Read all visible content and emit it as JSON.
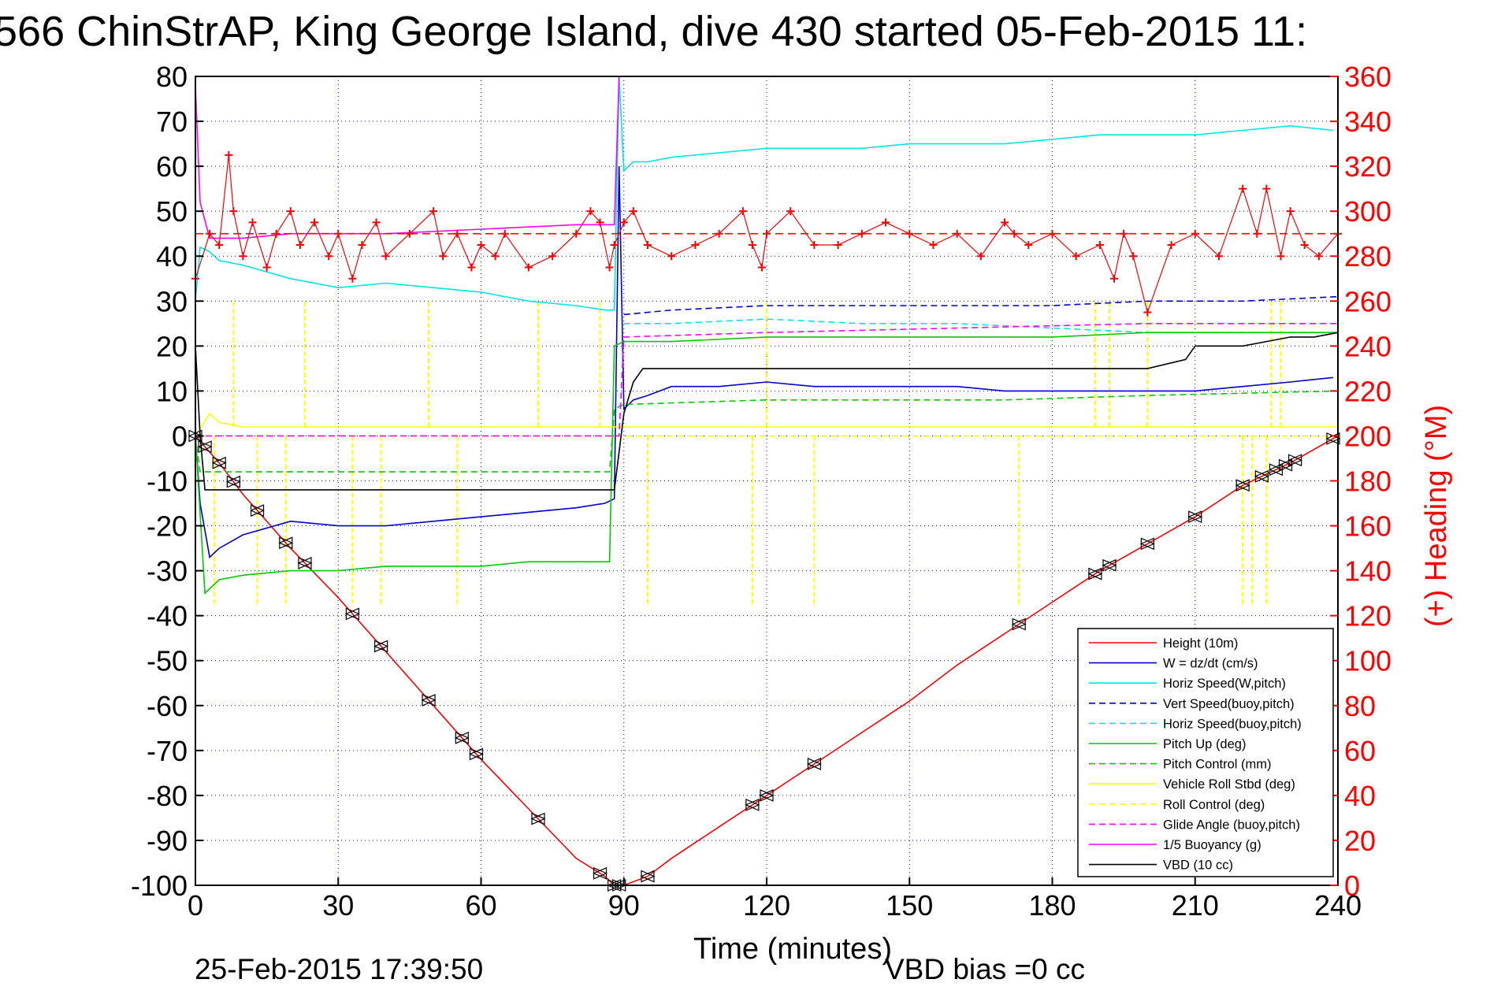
{
  "title": "566 ChinStrAP, King George Island, dive 430 started 05-Feb-2015 11:",
  "timestamp": "25-Feb-2015 17:39:50",
  "vbd_bias": "VBD bias =0 cc",
  "colors": {
    "height": "#ff0000",
    "w": "#0000cc",
    "horiz": "#00e6e6",
    "pitch": "#00cc00",
    "roll": "#ffff00",
    "glide": "#ff00ff",
    "buoy": "#ff00ff",
    "vbd": "#000000",
    "heading": "#ff0000",
    "grid": "#0000ff"
  },
  "chart_data": {
    "type": "line",
    "xlabel": "Time (minutes)",
    "ylabel": "",
    "y2label": "(+) Heading (°M)",
    "xlim": [
      0,
      240
    ],
    "ylim": [
      -100,
      80
    ],
    "y2lim": [
      0,
      360
    ],
    "xticks": [
      "0",
      "30",
      "60",
      "90",
      "120",
      "150",
      "180",
      "210",
      "240"
    ],
    "yticks": [
      "80",
      "70",
      "60",
      "50",
      "40",
      "30",
      "20",
      "10",
      "0",
      "-10",
      "-20",
      "-30",
      "-40",
      "-50",
      "-60",
      "-70",
      "-80",
      "-90",
      "-100"
    ],
    "y2ticks": [
      "360",
      "340",
      "320",
      "300",
      "280",
      "260",
      "240",
      "220",
      "200",
      "180",
      "160",
      "140",
      "120",
      "100",
      "80",
      "60",
      "40",
      "20",
      "0"
    ],
    "grid": true,
    "legend_position": "bottom-right",
    "heading_target": 290,
    "series": [
      {
        "name": "Height (10m)",
        "color": "#ff0000",
        "style": "solid",
        "x": [
          0,
          5,
          10,
          20,
          30,
          40,
          50,
          60,
          70,
          80,
          86,
          88,
          90,
          95,
          100,
          110,
          120,
          130,
          140,
          150,
          160,
          170,
          180,
          190,
          200,
          210,
          220,
          230,
          240
        ],
        "y": [
          0,
          -6,
          -13,
          -25,
          -36,
          -48,
          -60,
          -72,
          -83,
          -94,
          -98,
          -100,
          -100,
          -98,
          -94,
          -87,
          -80,
          -73,
          -66,
          -59,
          -51,
          -44,
          -37,
          -30,
          -24,
          -18,
          -11,
          -6,
          0
        ]
      },
      {
        "name": "W = dz/dt (cm/s)",
        "color": "#0000cc",
        "style": "solid",
        "x": [
          0,
          1,
          3,
          5,
          10,
          20,
          30,
          40,
          50,
          60,
          70,
          80,
          86,
          88,
          89,
          90,
          92,
          95,
          100,
          110,
          120,
          130,
          140,
          150,
          160,
          170,
          180,
          190,
          200,
          210,
          220,
          230,
          239
        ],
        "y": [
          0,
          -15,
          -27,
          -25,
          -22,
          -19,
          -20,
          -20,
          -19,
          -18,
          -17,
          -16,
          -15,
          -14,
          60,
          6,
          8,
          9,
          11,
          11,
          12,
          11,
          11,
          11,
          11,
          10,
          10,
          10,
          10,
          10,
          11,
          12,
          13
        ]
      },
      {
        "name": "Horiz Speed(W,pitch)",
        "color": "#00e6e6",
        "style": "solid",
        "x": [
          0,
          1,
          3,
          5,
          10,
          20,
          30,
          40,
          50,
          60,
          70,
          80,
          86,
          88,
          89,
          90,
          92,
          95,
          100,
          110,
          120,
          130,
          140,
          150,
          160,
          170,
          180,
          190,
          200,
          210,
          220,
          230,
          239
        ],
        "y": [
          30,
          42,
          41,
          39,
          38,
          35,
          33,
          34,
          33,
          32,
          30,
          29,
          28,
          28,
          80,
          59,
          61,
          61,
          62,
          63,
          64,
          64,
          64,
          65,
          65,
          65,
          66,
          67,
          67,
          67,
          68,
          69,
          68
        ]
      },
      {
        "name": "Vert Speed(buoy,pitch)",
        "color": "#0000cc",
        "style": "dashed",
        "x": [
          90,
          100,
          120,
          140,
          160,
          180,
          200,
          220,
          240
        ],
        "y": [
          27,
          28,
          29,
          29,
          29,
          29,
          30,
          30,
          31
        ]
      },
      {
        "name": "Horiz Speed(buoy,pitch)",
        "color": "#00e6e6",
        "style": "dashed",
        "x": [
          90,
          100,
          120,
          140,
          160,
          180,
          200,
          220,
          240
        ],
        "y": [
          25,
          25,
          26,
          25,
          25,
          24,
          23,
          23,
          23
        ]
      },
      {
        "name": "Pitch Up (deg)",
        "color": "#00cc00",
        "style": "solid",
        "x": [
          0,
          2,
          5,
          10,
          20,
          30,
          40,
          50,
          60,
          70,
          80,
          86,
          87,
          88,
          90,
          95,
          100,
          120,
          140,
          160,
          180,
          200,
          220,
          240
        ],
        "y": [
          0,
          -35,
          -32,
          -31,
          -30,
          -30,
          -29,
          -29,
          -29,
          -28,
          -28,
          -28,
          -28,
          20,
          21,
          21,
          21,
          22,
          22,
          22,
          22,
          23,
          23,
          23
        ]
      },
      {
        "name": "Pitch Control (mm)",
        "color": "#00cc00",
        "style": "dashed",
        "x": [
          0,
          1,
          2,
          5,
          86,
          87,
          88,
          90,
          120,
          170,
          200,
          240
        ],
        "y": [
          0,
          -8,
          -8,
          -8,
          -8,
          -8,
          6,
          7,
          8,
          8,
          9,
          10
        ]
      },
      {
        "name": "Vehicle Roll Stbd (deg)",
        "color": "#ffff00",
        "style": "solid",
        "x": [
          0,
          3,
          5,
          10,
          20,
          40,
          60,
          80,
          90,
          100,
          120,
          140,
          160,
          180,
          200,
          220,
          240
        ],
        "y": [
          0,
          5,
          3,
          2,
          2,
          2,
          2,
          2,
          2,
          2,
          2,
          2,
          2,
          2,
          2,
          2,
          2
        ]
      },
      {
        "name": "Roll Control (deg)",
        "color": "#ffff00",
        "style": "dashed",
        "x": [
          0,
          240
        ],
        "y": [
          0,
          0
        ]
      },
      {
        "name": "Glide Angle (buoy,pitch)",
        "color": "#ff00ff",
        "style": "dashed",
        "x": [
          0,
          88,
          89,
          90,
          120,
          160,
          200,
          240
        ],
        "y": [
          0,
          0,
          0,
          22,
          23,
          24,
          25,
          25
        ]
      },
      {
        "name": "1/5 Buoyancy (g)",
        "color": "#ff00ff",
        "style": "solid",
        "x": [
          0,
          1,
          3,
          6,
          10,
          20,
          40,
          60,
          80,
          88,
          89
        ],
        "y": [
          78,
          52,
          44,
          44,
          44,
          45,
          45,
          46,
          47,
          47,
          80
        ]
      },
      {
        "name": "VBD (10 cc)",
        "color": "#000000",
        "style": "solid",
        "x": [
          0,
          1,
          2,
          3,
          88,
          90,
          92,
          94,
          95,
          180,
          200,
          208,
          210,
          220,
          225,
          230,
          235,
          240
        ],
        "y": [
          20,
          0,
          -12,
          -12,
          -12,
          5,
          12,
          15,
          15,
          15,
          15,
          17,
          20,
          20,
          21,
          22,
          22,
          23
        ]
      }
    ],
    "heading_series": {
      "name": "Heading",
      "x": [
        0,
        3,
        5,
        7,
        8,
        10,
        12,
        15,
        17,
        20,
        22,
        25,
        28,
        30,
        33,
        35,
        38,
        40,
        45,
        50,
        52,
        55,
        58,
        60,
        63,
        65,
        70,
        75,
        80,
        83,
        85,
        87,
        88,
        90,
        92,
        95,
        100,
        105,
        110,
        115,
        117,
        119,
        120,
        125,
        130,
        135,
        140,
        145,
        150,
        155,
        160,
        165,
        170,
        172,
        175,
        180,
        185,
        190,
        193,
        195,
        197,
        200,
        205,
        210,
        215,
        220,
        223,
        225,
        228,
        230,
        233,
        236,
        240
      ],
      "y": [
        270,
        290,
        285,
        325,
        300,
        280,
        295,
        275,
        290,
        300,
        285,
        295,
        280,
        290,
        270,
        285,
        295,
        280,
        290,
        300,
        280,
        290,
        275,
        285,
        280,
        290,
        275,
        280,
        290,
        300,
        295,
        275,
        285,
        295,
        300,
        285,
        280,
        285,
        290,
        300,
        285,
        275,
        290,
        300,
        285,
        285,
        290,
        295,
        290,
        285,
        290,
        280,
        295,
        290,
        285,
        290,
        280,
        285,
        270,
        290,
        280,
        255,
        285,
        290,
        280,
        310,
        290,
        310,
        280,
        300,
        285,
        280,
        290
      ]
    }
  },
  "legend": [
    {
      "label": "Height (10m)",
      "color": "#ff0000",
      "dash": "solid"
    },
    {
      "label": "W = dz/dt (cm/s)",
      "color": "#0000cc",
      "dash": "solid"
    },
    {
      "label": "Horiz Speed(W,pitch)",
      "color": "#00e6e6",
      "dash": "solid"
    },
    {
      "label": "Vert Speed(buoy,pitch)",
      "color": "#0000cc",
      "dash": "dashed"
    },
    {
      "label": "Horiz Speed(buoy,pitch)",
      "color": "#00e6e6",
      "dash": "dashed"
    },
    {
      "label": "Pitch Up (deg)",
      "color": "#00cc00",
      "dash": "solid"
    },
    {
      "label": "Pitch Control (mm)",
      "color": "#00cc00",
      "dash": "dashed"
    },
    {
      "label": "Vehicle Roll Stbd (deg)",
      "color": "#ffff00",
      "dash": "solid"
    },
    {
      "label": "Roll Control (deg)",
      "color": "#ffff00",
      "dash": "dashed"
    },
    {
      "label": "Glide Angle (buoy,pitch)",
      "color": "#ff00ff",
      "dash": "dashed"
    },
    {
      "label": "1/5 Buoyancy (g)",
      "color": "#ff00ff",
      "dash": "solid"
    },
    {
      "label": "VBD (10 cc)",
      "color": "#000000",
      "dash": "solid"
    }
  ]
}
